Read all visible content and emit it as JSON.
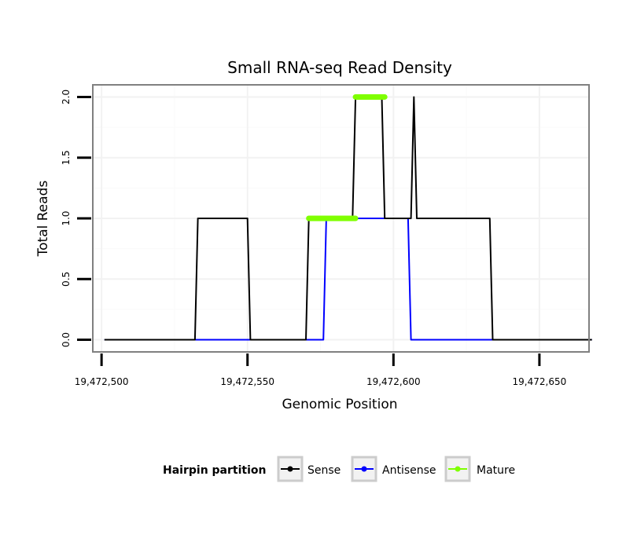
{
  "chart_data": {
    "type": "line",
    "title": "Small RNA-seq Read Density",
    "xlabel": "Genomic Position",
    "ylabel": "Total Reads",
    "xlim": [
      19472497,
      19472667
    ],
    "ylim": [
      -0.1,
      2.1
    ],
    "x_ticks": [
      19472500,
      19472550,
      19472600,
      19472650
    ],
    "x_tick_labels": [
      "19,472,500",
      "19,472,550",
      "19,472,600",
      "19,472,650"
    ],
    "y_ticks": [
      0,
      0.5,
      1,
      1.5,
      2
    ],
    "y_tick_labels": [
      "0.0",
      "0.5",
      "1.0",
      "1.5",
      "2.0"
    ],
    "grid": true,
    "legend": {
      "title": "Hairpin partition",
      "position": "bottom",
      "entries": [
        "Sense",
        "Antisense",
        "Mature"
      ]
    },
    "series": [
      {
        "name": "Antisense",
        "color": "#0000ff",
        "x": [
          19472501,
          19472576,
          19472577,
          19472605,
          19472606,
          19472668
        ],
        "y": [
          0,
          0,
          1,
          1,
          0,
          0
        ]
      },
      {
        "name": "Sense",
        "color": "#000000",
        "x": [
          19472501,
          19472532,
          19472533,
          19472550,
          19472551,
          19472570,
          19472571,
          19472586,
          19472587,
          19472596,
          19472597,
          19472605,
          19472606,
          19472607,
          19472608,
          19472633,
          19472634,
          19472668
        ],
        "y": [
          0,
          0,
          1,
          1,
          0,
          0,
          1,
          1,
          2,
          2,
          1,
          1,
          1,
          2,
          1,
          1,
          0,
          0
        ]
      },
      {
        "name": "Mature",
        "color": "#7fff00",
        "segments": [
          {
            "x": [
              19472571,
              19472587
            ],
            "y": [
              1,
              1
            ]
          },
          {
            "x": [
              19472587,
              19472597
            ],
            "y": [
              2,
              2
            ]
          }
        ]
      }
    ]
  }
}
